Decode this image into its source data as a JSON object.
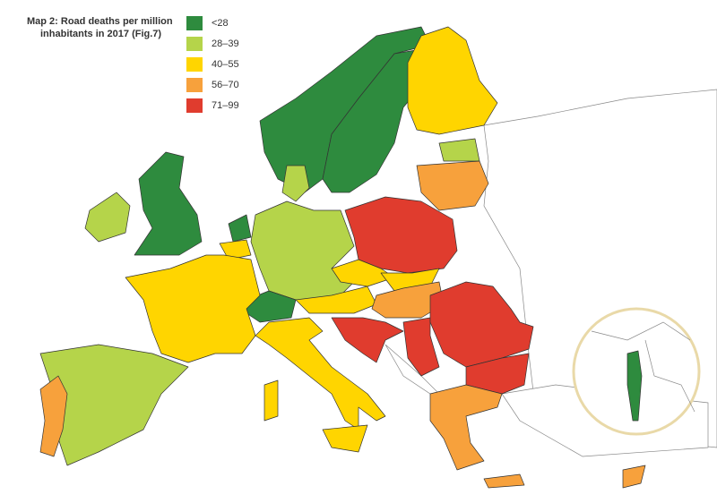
{
  "header": {
    "title_lines": [
      "Map 2: Road deaths per million",
      "inhabitants in 2017 (Fig.7)"
    ]
  },
  "legend": {
    "items": [
      {
        "label": "<28",
        "color": "#2e8b3e"
      },
      {
        "label": "28–39",
        "color": "#b5d44a"
      },
      {
        "label": "40–55",
        "color": "#ffd500"
      },
      {
        "label": "56–70",
        "color": "#f7a13c"
      },
      {
        "label": "71–99",
        "color": "#e03c2e"
      }
    ]
  }
}
